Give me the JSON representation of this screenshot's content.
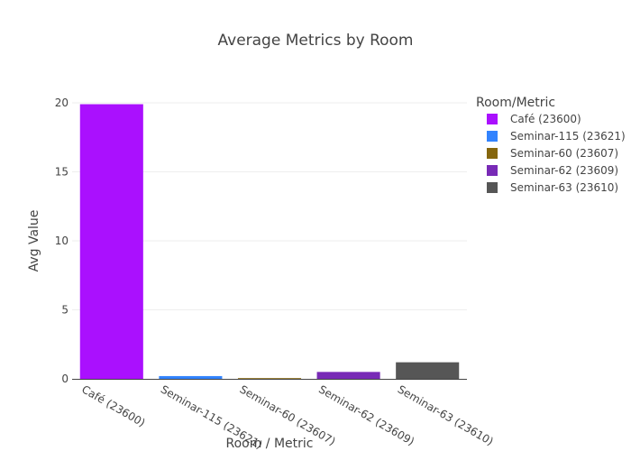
{
  "chart_data": {
    "type": "bar",
    "title": "Average Metrics by Room",
    "xlabel": "Room / Metric",
    "ylabel": "Avg Value",
    "ylim": [
      0,
      20
    ],
    "yticks": [
      0,
      5,
      10,
      15,
      20
    ],
    "grid": true,
    "legend": {
      "title": "Room/Metric",
      "placement": "right"
    },
    "categories": [
      "Café (23600)",
      "Seminar-115 (23621)",
      "Seminar-60 (23607)",
      "Seminar-62 (23609)",
      "Seminar-63 (23610)"
    ],
    "series": [
      {
        "name": "Café (23600)",
        "category": "Café (23600)",
        "value": 19.9,
        "color": "#AA10FE"
      },
      {
        "name": "Seminar-115 (23621)",
        "category": "Seminar-115 (23621)",
        "value": 0.2,
        "color": "#3283FE"
      },
      {
        "name": "Seminar-60 (23607)",
        "category": "Seminar-60 (23607)",
        "value": 0.05,
        "color": "#85660D"
      },
      {
        "name": "Seminar-62 (23609)",
        "category": "Seminar-62 (23609)",
        "value": 0.5,
        "color": "#782AB6"
      },
      {
        "name": "Seminar-63 (23610)",
        "category": "Seminar-63 (23610)",
        "value": 1.2,
        "color": "#565656"
      }
    ]
  }
}
